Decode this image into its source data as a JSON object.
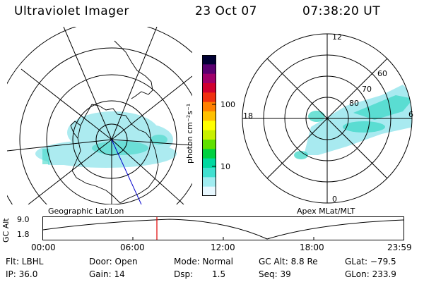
{
  "header": {
    "instrument": "Ultraviolet Imager",
    "date": "23 Oct 07",
    "time": "07:38:20 UT"
  },
  "colorbar": {
    "unit_label": "photon cm⁻²s⁻¹",
    "ticks": [
      "100",
      "10"
    ],
    "colors": [
      "#000033",
      "#5a0070",
      "#a0006a",
      "#d00030",
      "#f03010",
      "#ff8000",
      "#ffc000",
      "#ffff00",
      "#c8f000",
      "#60e000",
      "#00d040",
      "#00d8a0",
      "#40e0d0",
      "#a0ecf0",
      "#e8f8ff"
    ]
  },
  "left_map": {
    "label": "Geographic Lat/Lon"
  },
  "right_map": {
    "label": "Apex MLat/MLT",
    "mlt_labels": {
      "top": "12",
      "left": "18",
      "right": "6",
      "bottom": "0"
    },
    "lat_labels": [
      "60",
      "70",
      "80"
    ]
  },
  "timeline": {
    "ylabel": "GC Alt",
    "y_ticks": [
      "9.0",
      "1.8"
    ],
    "x_ticks": [
      "00:00",
      "06:00",
      "12:00",
      "18:00",
      "23:59"
    ],
    "marker_time": "07:38:20"
  },
  "info": {
    "filter": "Flt: LBHL",
    "ip": "IP: 36.0",
    "door": "Door: Open",
    "gain": "Gain: 14",
    "mode": "Mode: Normal",
    "dsp_label": "Dsp:",
    "dsp_value": "1.5",
    "gc_alt": "GC Alt: 8.8 Re",
    "seq": "Seq: 39",
    "glat": "GLat: −79.5",
    "glon": "GLon: 233.9"
  }
}
